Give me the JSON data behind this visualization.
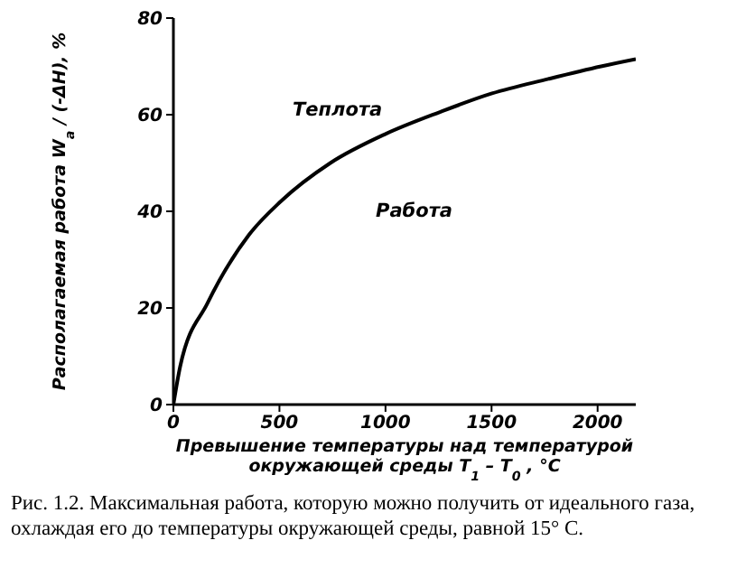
{
  "chart_data": {
    "type": "line",
    "ylabel": "Располагаемая работа  W$_{a}$ / (-ΔH), %",
    "xlabel": "Превышение температуры над температурой окружающей среды  T$_{1}$ – T$_{0}$ , °C",
    "x": [
      0,
      32,
      161,
      354,
      505,
      740,
      1000,
      1254,
      1502,
      1768,
      2016,
      2180
    ],
    "series": [
      {
        "color": "#000000",
        "values": [
          0,
          7.9,
          21,
          35,
          42,
          50,
          56,
          60.5,
          64.4,
          67.4,
          70,
          71.5
        ]
      }
    ],
    "xlim": [
      0,
      2180
    ],
    "xticks": [
      0,
      500,
      1000,
      1500,
      2000
    ],
    "ylim": [
      0,
      80
    ],
    "yticks": [
      0,
      20,
      40,
      60,
      80
    ],
    "grid": false,
    "legend": false,
    "marker": "none",
    "line_style": "solid",
    "annotations": [
      "Теплота",
      "Работа",
      "Рис. 1.2. Максимальная работа, которую можно получить от идеального газа, охлаждая его до температуры окружающей среды, равной 15° C."
    ]
  }
}
